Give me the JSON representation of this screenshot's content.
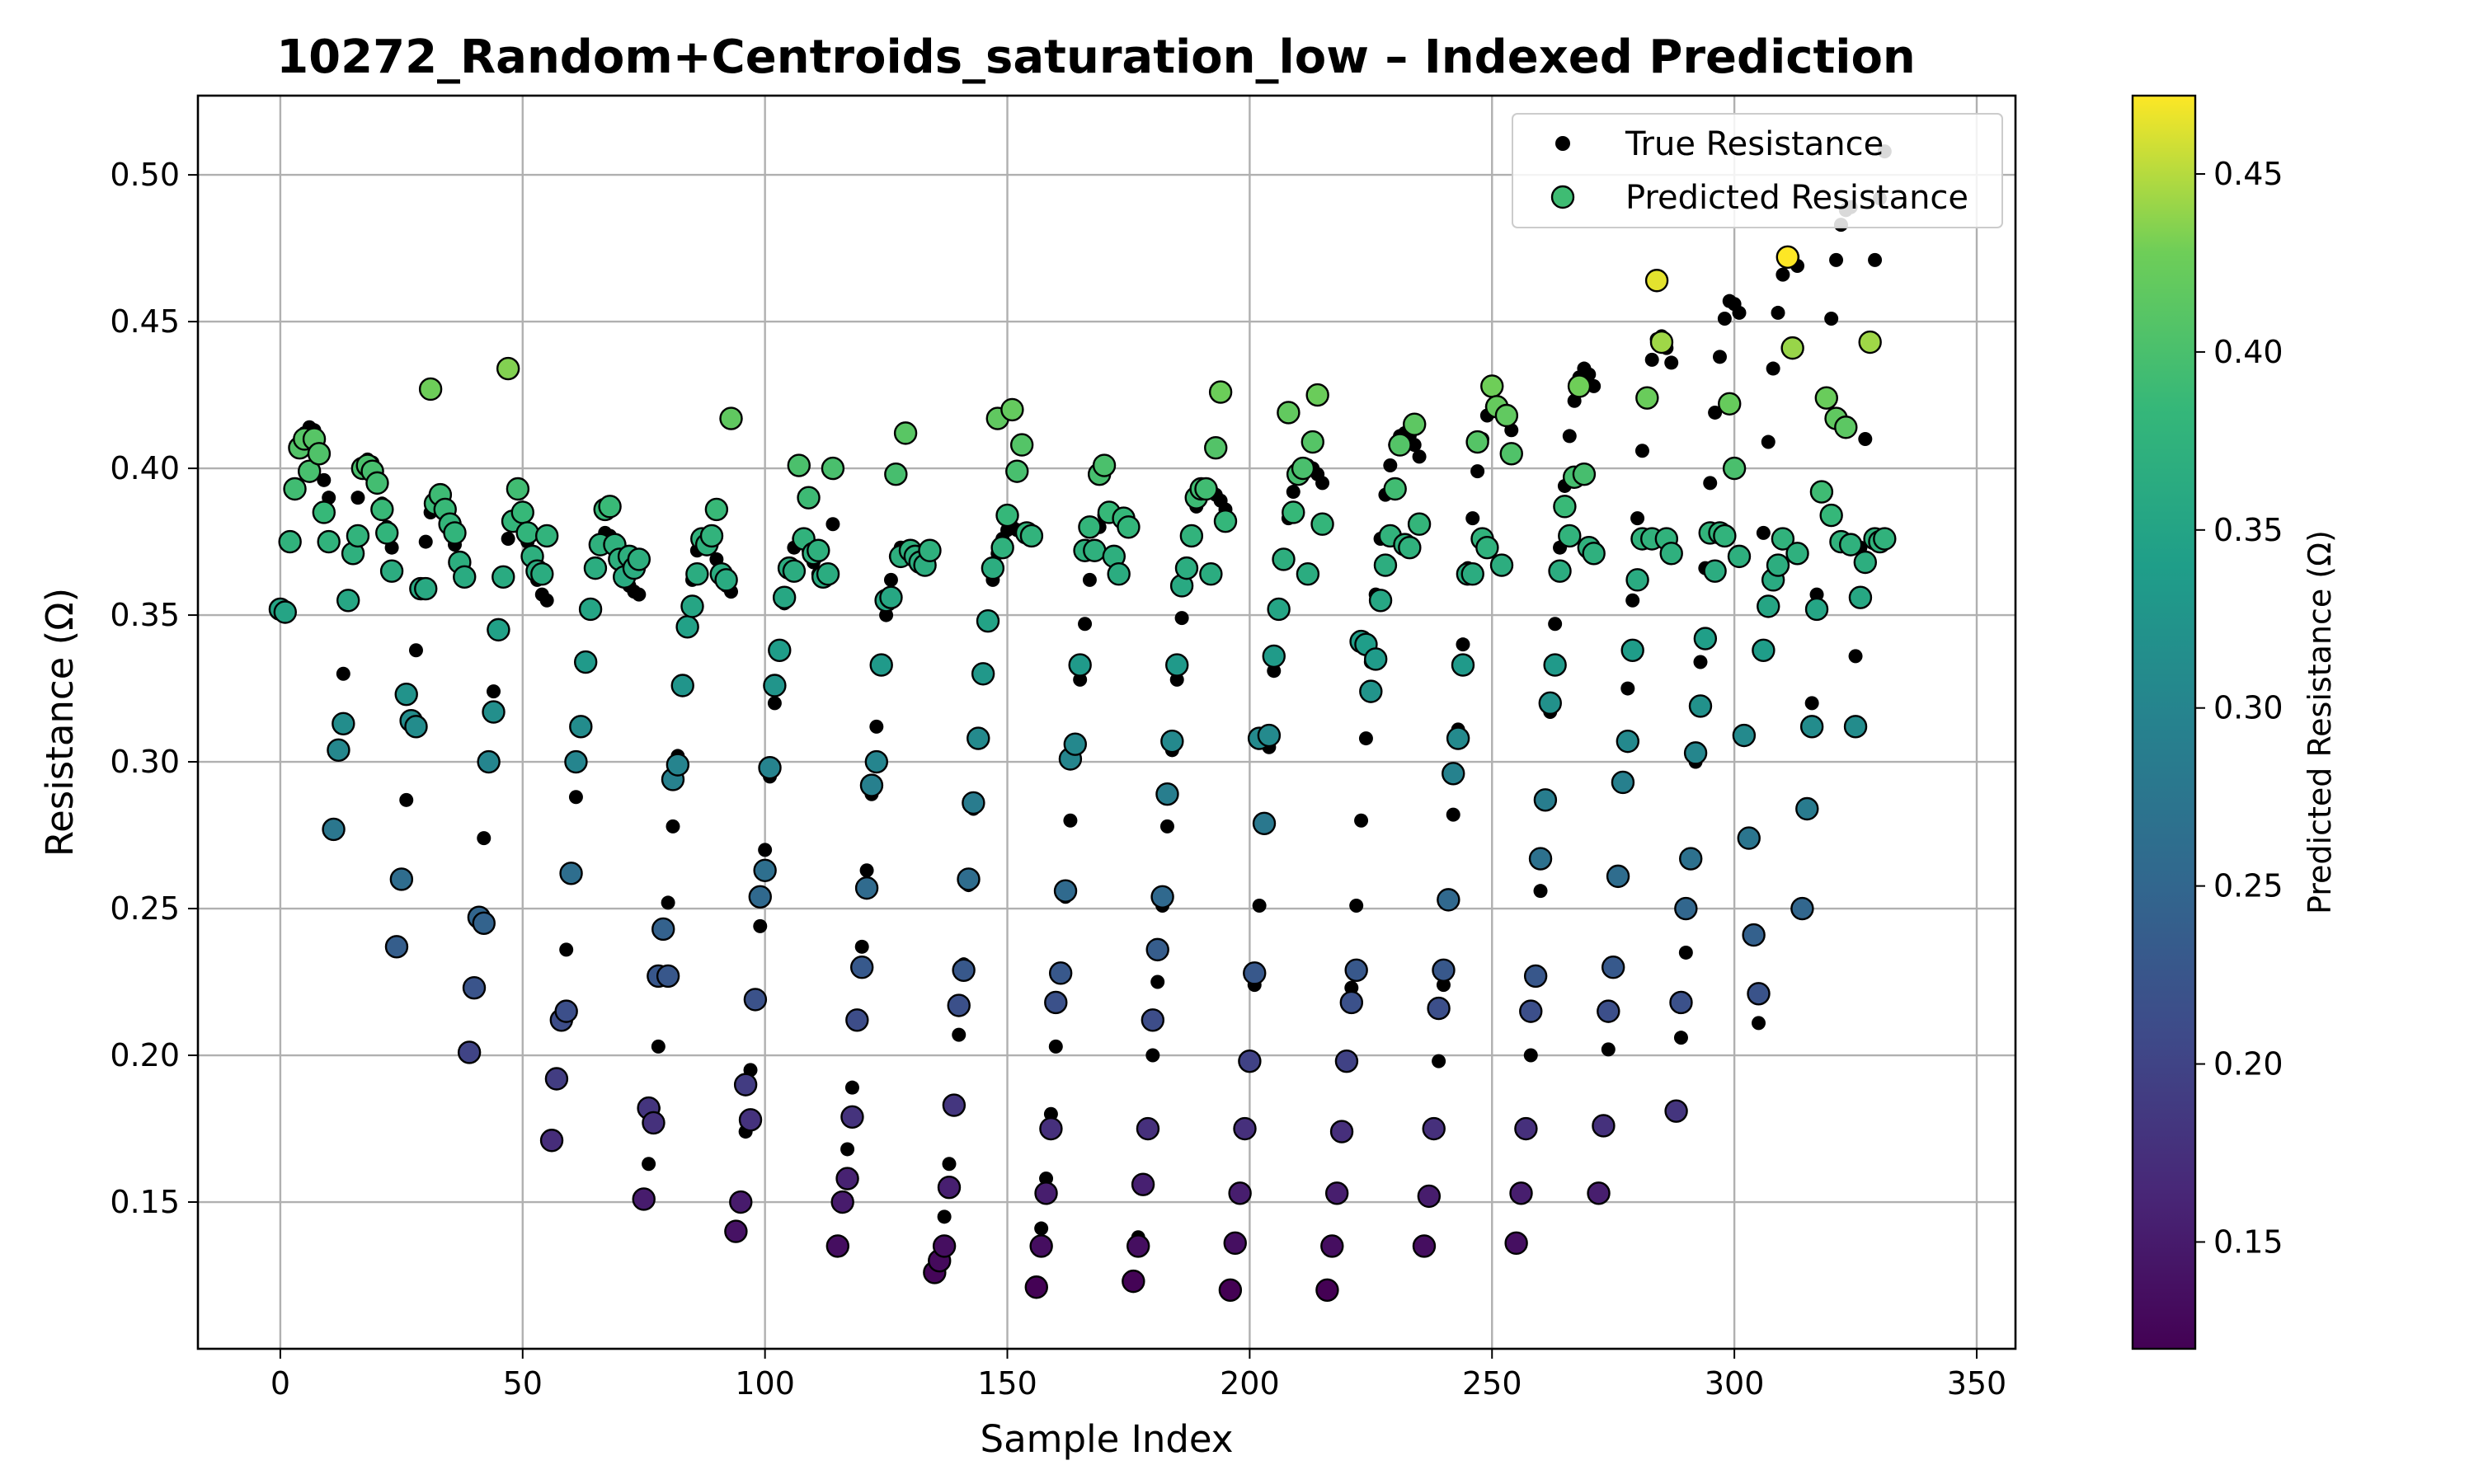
{
  "chart_data": {
    "type": "scatter",
    "title": "10272_Random+Centroids_saturation_low – Indexed Prediction",
    "xlabel": "Sample Index",
    "ylabel": "Resistance (Ω)",
    "xlim": [
      -17,
      358
    ],
    "ylim": [
      0.1,
      0.527
    ],
    "xticks": [
      0,
      50,
      100,
      150,
      200,
      250,
      300,
      350
    ],
    "yticks": [
      0.15,
      0.2,
      0.25,
      0.3,
      0.35,
      0.4,
      0.45,
      0.5
    ],
    "grid": true,
    "legend_position": "top-right",
    "colormap": "viridis",
    "colorbar": {
      "label": "Predicted Resistance (Ω)",
      "range": [
        0.12,
        0.472
      ],
      "ticks": [
        0.15,
        0.2,
        0.25,
        0.3,
        0.35,
        0.4,
        0.45
      ]
    },
    "series": [
      {
        "name": "True Resistance",
        "color": "#000000",
        "note_ref": "x = sample index (0..341), y = true resistance",
        "y": [
          0.352,
          0.352,
          0.375,
          0.393,
          0.407,
          0.412,
          0.414,
          0.413,
          0.406,
          0.396,
          0.39,
          0.277,
          0.304,
          0.33,
          0.355,
          0.371,
          0.39,
          0.4,
          0.403,
          0.402,
          0.397,
          0.388,
          0.38,
          0.373,
          0.237,
          0.26,
          0.287,
          0.314,
          0.338,
          0.359,
          0.375,
          0.385,
          0.39,
          0.391,
          0.388,
          0.382,
          0.374,
          0.367,
          0.364,
          0.201,
          0.223,
          0.248,
          0.274,
          0.3,
          0.324,
          0.346,
          0.364,
          0.376,
          0.382,
          0.383,
          0.38,
          0.375,
          0.368,
          0.362,
          0.357,
          0.355,
          0.171,
          0.192,
          0.213,
          0.236,
          0.262,
          0.288,
          0.312,
          0.334,
          0.352,
          0.366,
          0.374,
          0.378,
          0.377,
          0.374,
          0.369,
          0.364,
          0.36,
          0.358,
          0.357,
          0.151,
          0.163,
          0.182,
          0.203,
          0.227,
          0.252,
          0.278,
          0.302,
          0.326,
          0.346,
          0.362,
          0.372,
          0.377,
          0.377,
          0.374,
          0.369,
          0.364,
          0.36,
          0.358,
          0.14,
          0.15,
          0.174,
          0.195,
          0.219,
          0.244,
          0.27,
          0.295,
          0.32,
          0.338,
          0.354,
          0.366,
          0.373,
          0.376,
          0.375,
          0.372,
          0.368,
          0.364,
          0.362,
          0.363,
          0.381,
          0.135,
          0.15,
          0.168,
          0.189,
          0.212,
          0.237,
          0.263,
          0.289,
          0.312,
          0.333,
          0.35,
          0.362,
          0.37,
          0.373,
          0.373,
          0.371,
          0.369,
          0.368,
          0.369,
          0.372,
          0.126,
          0.13,
          0.145,
          0.163,
          0.183,
          0.207,
          0.231,
          0.258,
          0.284,
          0.308,
          0.33,
          0.348,
          0.362,
          0.371,
          0.376,
          0.379,
          0.38,
          0.379,
          0.378,
          0.377,
          0.377,
          0.121,
          0.141,
          0.158,
          0.18,
          0.203,
          0.228,
          0.254,
          0.28,
          0.305,
          0.328,
          0.347,
          0.362,
          0.373,
          0.38,
          0.384,
          0.385,
          0.385,
          0.384,
          0.383,
          0.382,
          0.123,
          0.138,
          0.157,
          0.176,
          0.2,
          0.225,
          0.251,
          0.278,
          0.304,
          0.328,
          0.349,
          0.366,
          0.378,
          0.387,
          0.391,
          0.393,
          0.393,
          0.391,
          0.389,
          0.386,
          0.12,
          0.136,
          0.153,
          0.174,
          0.198,
          0.224,
          0.251,
          0.278,
          0.305,
          0.331,
          0.353,
          0.37,
          0.383,
          0.392,
          0.398,
          0.4,
          0.401,
          0.4,
          0.398,
          0.395,
          0.12,
          0.135,
          0.153,
          0.174,
          0.198,
          0.223,
          0.251,
          0.28,
          0.308,
          0.334,
          0.357,
          0.376,
          0.391,
          0.401,
          0.408,
          0.411,
          0.412,
          0.411,
          0.408,
          0.404,
          0.135,
          0.152,
          0.175,
          0.198,
          0.224,
          0.252,
          0.282,
          0.311,
          0.34,
          0.366,
          0.383,
          0.399,
          0.41,
          0.418,
          0.421,
          0.422,
          0.421,
          0.418,
          0.413,
          0.136,
          0.153,
          0.175,
          0.2,
          0.228,
          0.256,
          0.287,
          0.317,
          0.347,
          0.373,
          0.394,
          0.411,
          0.423,
          0.431,
          0.434,
          0.432,
          0.428,
          0.153,
          0.176,
          0.202,
          0.23,
          0.261,
          0.293,
          0.325,
          0.355,
          0.383,
          0.406,
          0.424,
          0.437,
          0.444,
          0.445,
          0.441,
          0.436,
          0.181,
          0.206,
          0.235,
          0.267,
          0.3,
          0.334,
          0.366,
          0.395,
          0.419,
          0.438,
          0.451,
          0.457,
          0.456,
          0.453,
          0.309,
          0.274,
          0.241,
          0.211,
          0.378,
          0.409,
          0.434,
          0.453,
          0.466,
          0.471,
          0.472,
          0.469,
          0.25,
          0.284,
          0.32,
          0.357,
          0.392,
          0.424,
          0.451,
          0.471,
          0.483,
          0.488,
          0.489,
          0.336,
          0.373,
          0.41,
          0.443,
          0.471,
          0.492,
          0.508
        ]
      },
      {
        "name": "Predicted Resistance",
        "edge_color": "#000000",
        "y": [
          0.352,
          0.351,
          0.375,
          0.393,
          0.407,
          0.41,
          0.399,
          0.41,
          0.405,
          0.385,
          0.375,
          0.277,
          0.304,
          0.313,
          0.355,
          0.371,
          0.377,
          0.4,
          0.401,
          0.399,
          0.395,
          0.386,
          0.378,
          0.365,
          0.237,
          0.26,
          0.323,
          0.314,
          0.312,
          0.359,
          0.359,
          0.427,
          0.388,
          0.391,
          0.386,
          0.381,
          0.378,
          0.368,
          0.363,
          0.201,
          0.223,
          0.247,
          0.245,
          0.3,
          0.317,
          0.345,
          0.363,
          0.434,
          0.382,
          0.393,
          0.385,
          0.378,
          0.37,
          0.365,
          0.364,
          0.377,
          0.171,
          0.192,
          0.212,
          0.215,
          0.262,
          0.3,
          0.312,
          0.334,
          0.352,
          0.366,
          0.374,
          0.386,
          0.387,
          0.374,
          0.369,
          0.363,
          0.37,
          0.366,
          0.369,
          0.151,
          0.182,
          0.177,
          0.227,
          0.243,
          0.227,
          0.294,
          0.299,
          0.326,
          0.346,
          0.353,
          0.364,
          0.376,
          0.374,
          0.377,
          0.386,
          0.364,
          0.362,
          0.417,
          0.14,
          0.15,
          0.19,
          0.178,
          0.219,
          0.254,
          0.263,
          0.298,
          0.326,
          0.338,
          0.356,
          0.366,
          0.365,
          0.401,
          0.376,
          0.39,
          0.371,
          0.372,
          0.363,
          0.364,
          0.4,
          0.135,
          0.15,
          0.158,
          0.179,
          0.212,
          0.23,
          0.257,
          0.292,
          0.3,
          0.333,
          0.355,
          0.356,
          0.398,
          0.37,
          0.412,
          0.372,
          0.37,
          0.368,
          0.367,
          0.372,
          0.126,
          0.13,
          0.135,
          0.155,
          0.183,
          0.217,
          0.229,
          0.26,
          0.286,
          0.308,
          0.33,
          0.348,
          0.366,
          0.417,
          0.373,
          0.384,
          0.42,
          0.399,
          0.408,
          0.378,
          0.377,
          0.121,
          0.135,
          0.153,
          0.175,
          0.218,
          0.228,
          0.256,
          0.301,
          0.306,
          0.333,
          0.372,
          0.38,
          0.372,
          0.398,
          0.401,
          0.385,
          0.37,
          0.364,
          0.383,
          0.38,
          0.123,
          0.135,
          0.156,
          0.175,
          0.212,
          0.236,
          0.254,
          0.289,
          0.307,
          0.333,
          0.36,
          0.366,
          0.377,
          0.39,
          0.393,
          0.393,
          0.364,
          0.407,
          0.426,
          0.382,
          0.12,
          0.136,
          0.153,
          0.175,
          0.198,
          0.228,
          0.308,
          0.279,
          0.309,
          0.336,
          0.352,
          0.369,
          0.419,
          0.385,
          0.398,
          0.4,
          0.364,
          0.409,
          0.425,
          0.381,
          0.12,
          0.135,
          0.153,
          0.174,
          0.198,
          0.218,
          0.229,
          0.341,
          0.34,
          0.324,
          0.335,
          0.355,
          0.367,
          0.377,
          0.393,
          0.408,
          0.374,
          0.373,
          0.415,
          0.381,
          0.135,
          0.152,
          0.175,
          0.216,
          0.229,
          0.253,
          0.296,
          0.308,
          0.333,
          0.364,
          0.364,
          0.409,
          0.376,
          0.373,
          0.428,
          0.421,
          0.367,
          0.418,
          0.405,
          0.136,
          0.153,
          0.175,
          0.215,
          0.227,
          0.267,
          0.287,
          0.32,
          0.333,
          0.365,
          0.387,
          0.377,
          0.397,
          0.428,
          0.398,
          0.373,
          0.371,
          0.153,
          0.176,
          0.215,
          0.23,
          0.261,
          0.293,
          0.307,
          0.338,
          0.362,
          0.376,
          0.424,
          0.376,
          0.464,
          0.443,
          0.376,
          0.371,
          0.181,
          0.218,
          0.25,
          0.267,
          0.303,
          0.319,
          0.342,
          0.378,
          0.365,
          0.378,
          0.377,
          0.422,
          0.4,
          0.37,
          0.309,
          0.274,
          0.241,
          0.221,
          0.338,
          0.353,
          0.362,
          0.367,
          0.376,
          0.472,
          0.441,
          0.371,
          0.25,
          0.284,
          0.312,
          0.352,
          0.392,
          0.424,
          0.384,
          0.417,
          0.375,
          0.414,
          0.374,
          0.312,
          0.356,
          0.368,
          0.443,
          0.376,
          0.375,
          0.376
        ]
      }
    ]
  }
}
